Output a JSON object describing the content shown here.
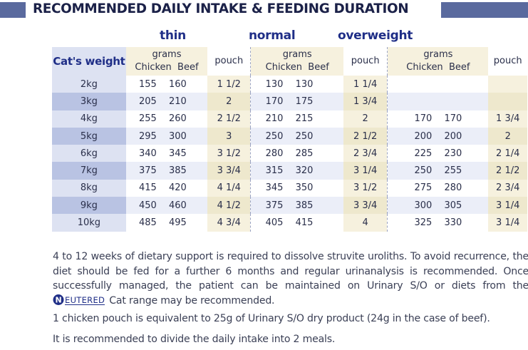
{
  "title": "RECOMMENDED DAILY INTAKE & FEEDING DURATION",
  "conditions": [
    "thin",
    "normal",
    "overweight"
  ],
  "headers": {
    "weight": "Cat's weight",
    "grams": "grams",
    "chicken": "Chicken",
    "beef": "Beef",
    "pouch": "pouch"
  },
  "rows": [
    {
      "weight": "2kg",
      "thin": [
        "155",
        "160"
      ],
      "thin_pouch": "1 1/2",
      "normal": [
        "130",
        "130"
      ],
      "normal_pouch": "1 1/4",
      "over": [
        "",
        ""
      ],
      "over_pouch": ""
    },
    {
      "weight": "3kg",
      "thin": [
        "205",
        "210"
      ],
      "thin_pouch": "2",
      "normal": [
        "170",
        "175"
      ],
      "normal_pouch": "1 3/4",
      "over": [
        "",
        ""
      ],
      "over_pouch": ""
    },
    {
      "weight": "4kg",
      "thin": [
        "255",
        "260"
      ],
      "thin_pouch": "2 1/2",
      "normal": [
        "210",
        "215"
      ],
      "normal_pouch": "2",
      "over": [
        "170",
        "170"
      ],
      "over_pouch": "1 3/4"
    },
    {
      "weight": "5kg",
      "thin": [
        "295",
        "300"
      ],
      "thin_pouch": "3",
      "normal": [
        "250",
        "250"
      ],
      "normal_pouch": "2 1/2",
      "over": [
        "200",
        "200"
      ],
      "over_pouch": "2"
    },
    {
      "weight": "6kg",
      "thin": [
        "340",
        "345"
      ],
      "thin_pouch": "3 1/2",
      "normal": [
        "280",
        "285"
      ],
      "normal_pouch": "2 3/4",
      "over": [
        "225",
        "230"
      ],
      "over_pouch": "2 1/4"
    },
    {
      "weight": "7kg",
      "thin": [
        "375",
        "385"
      ],
      "thin_pouch": "3 3/4",
      "normal": [
        "315",
        "320"
      ],
      "normal_pouch": "3 1/4",
      "over": [
        "250",
        "255"
      ],
      "over_pouch": "2 1/2"
    },
    {
      "weight": "8kg",
      "thin": [
        "415",
        "420"
      ],
      "thin_pouch": "4 1/4",
      "normal": [
        "345",
        "350"
      ],
      "normal_pouch": "3 1/2",
      "over": [
        "275",
        "280"
      ],
      "over_pouch": "2 3/4"
    },
    {
      "weight": "9kg",
      "thin": [
        "450",
        "460"
      ],
      "thin_pouch": "4 1/2",
      "normal": [
        "375",
        "385"
      ],
      "normal_pouch": "3 3/4",
      "over": [
        "300",
        "305"
      ],
      "over_pouch": "3 1/4"
    },
    {
      "weight": "10kg",
      "thin": [
        "485",
        "495"
      ],
      "thin_pouch": "4 3/4",
      "normal": [
        "405",
        "415"
      ],
      "normal_pouch": "4",
      "over": [
        "325",
        "330"
      ],
      "over_pouch": "3 1/4"
    }
  ],
  "paragraph1_before": "4 to 12 weeks of dietary support is required to dissolve struvite uroliths. To avoid recurrence, the diet should be fed for a further 6 months and regular urinanalysis is recommended. Once successfully managed, the patient can be maintained on Urinary S/O or diets from the",
  "paragraph1_after": "Cat range may be recommended.",
  "neutered_logo": "NEUTERED",
  "paragraph2": "1 chicken pouch is equivalent to 25g of Urinary S/O dry product (24g in the case of beef).",
  "paragraph3": "It is recommended to divide the daily intake into 2 meals.",
  "colors": {
    "title_text": "#1b2148",
    "accent_block": "#5a6a9e",
    "condition_text": "#1f2e87",
    "weight_col": "#dde2f2",
    "weight_col_alt": "#b9c3e3",
    "cream": "#f6f1de"
  }
}
